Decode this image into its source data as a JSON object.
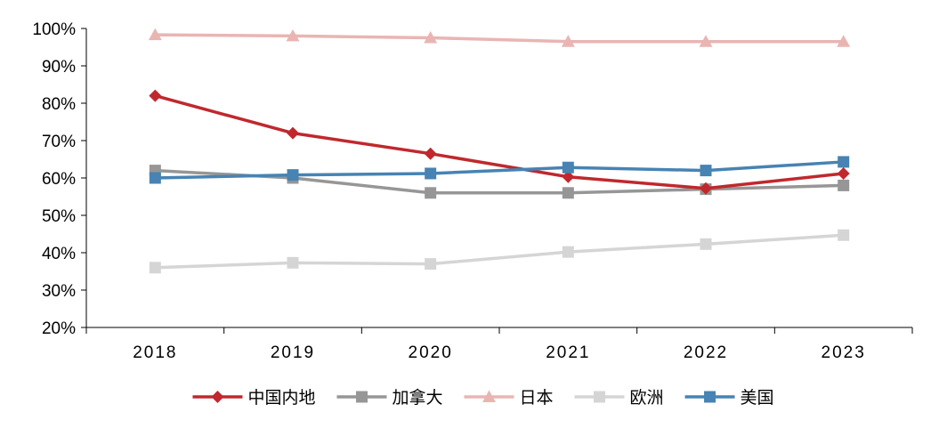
{
  "chart_data": {
    "type": "line",
    "title": "",
    "xlabel": "",
    "ylabel": "",
    "categories": [
      "2018",
      "2019",
      "2020",
      "2021",
      "2022",
      "2023"
    ],
    "ylim": [
      20,
      100
    ],
    "yticks": [
      20,
      30,
      40,
      50,
      60,
      70,
      80,
      90,
      100
    ],
    "ytick_labels": [
      "20%",
      "30%",
      "40%",
      "50%",
      "60%",
      "70%",
      "80%",
      "90%",
      "100%"
    ],
    "grid": false,
    "legend_position": "bottom",
    "series": [
      {
        "name": "中国内地",
        "color": "#C0282D",
        "marker": "diamond",
        "values": [
          82,
          72,
          66.5,
          60.3,
          57.2,
          61.2
        ]
      },
      {
        "name": "加拿大",
        "color": "#969696",
        "marker": "square",
        "values": [
          62,
          60,
          56,
          56,
          57,
          58
        ]
      },
      {
        "name": "日本",
        "color": "#E9B5B3",
        "marker": "triangle",
        "values": [
          98.3,
          98,
          97.5,
          96.5,
          96.5,
          96.5
        ]
      },
      {
        "name": "欧洲",
        "color": "#D5D5D5",
        "marker": "square",
        "values": [
          36,
          37.3,
          37,
          40.2,
          42.3,
          44.7
        ]
      },
      {
        "name": "美国",
        "color": "#4783B3",
        "marker": "square",
        "values": [
          60,
          60.8,
          61.2,
          62.8,
          62,
          64.3
        ]
      }
    ]
  }
}
